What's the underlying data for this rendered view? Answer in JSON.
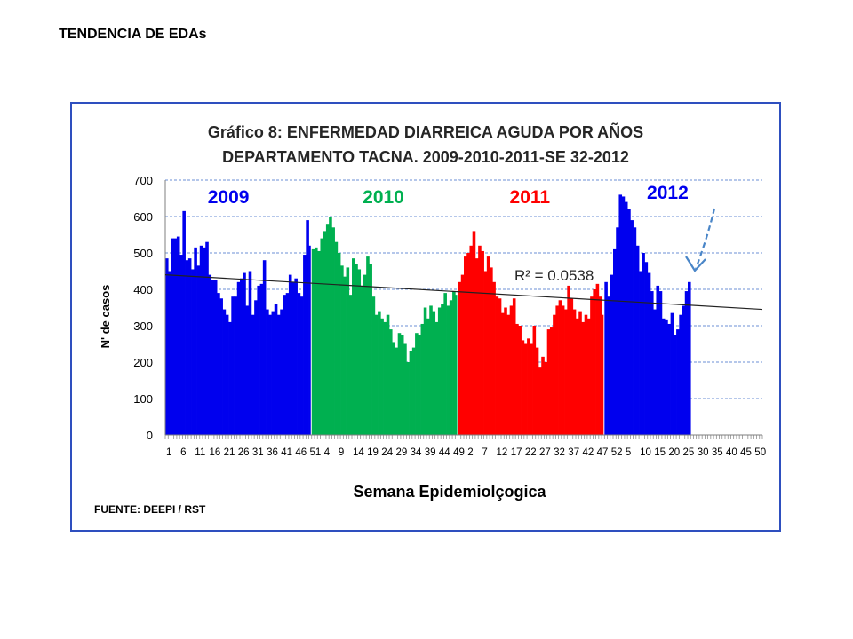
{
  "page": {
    "heading": "TENDENCIA DE EDAs"
  },
  "chart_data": {
    "type": "bar",
    "title_lines": [
      "Gráfico 8: ENFERMEDAD DIARREICA AGUDA POR AÑOS",
      "DEPARTAMENTO TACNA.  2009-2010-2011-SE 32-2012"
    ],
    "ylabel": "N' de casos",
    "xlabel": "Semana Epidemiolçogica",
    "ylim": [
      0,
      700
    ],
    "yticks": [
      0,
      100,
      200,
      300,
      400,
      500,
      600,
      700
    ],
    "grid": true,
    "total_slots": 208,
    "xtick_labels": [
      {
        "slot": 1,
        "label": "1"
      },
      {
        "slot": 6,
        "label": "6"
      },
      {
        "slot": 11,
        "label": "11"
      },
      {
        "slot": 16,
        "label": "16"
      },
      {
        "slot": 21,
        "label": "21"
      },
      {
        "slot": 26,
        "label": "26"
      },
      {
        "slot": 31,
        "label": "31"
      },
      {
        "slot": 36,
        "label": "36"
      },
      {
        "slot": 41,
        "label": "41"
      },
      {
        "slot": 46,
        "label": "46"
      },
      {
        "slot": 51,
        "label": "51"
      },
      {
        "slot": 56,
        "label": "4"
      },
      {
        "slot": 61,
        "label": "9"
      },
      {
        "slot": 66,
        "label": "14"
      },
      {
        "slot": 71,
        "label": "19"
      },
      {
        "slot": 76,
        "label": "24"
      },
      {
        "slot": 81,
        "label": "29"
      },
      {
        "slot": 86,
        "label": "34"
      },
      {
        "slot": 91,
        "label": "39"
      },
      {
        "slot": 96,
        "label": "44"
      },
      {
        "slot": 101,
        "label": "49"
      },
      {
        "slot": 106,
        "label": "2"
      },
      {
        "slot": 111,
        "label": "7"
      },
      {
        "slot": 116,
        "label": "12"
      },
      {
        "slot": 121,
        "label": "17"
      },
      {
        "slot": 126,
        "label": "22"
      },
      {
        "slot": 131,
        "label": "27"
      },
      {
        "slot": 136,
        "label": "32"
      },
      {
        "slot": 141,
        "label": "37"
      },
      {
        "slot": 146,
        "label": "42"
      },
      {
        "slot": 151,
        "label": "47"
      },
      {
        "slot": 156,
        "label": "52"
      },
      {
        "slot": 161,
        "label": "5"
      },
      {
        "slot": 166,
        "label": "10"
      },
      {
        "slot": 171,
        "label": "15"
      },
      {
        "slot": 176,
        "label": "20"
      },
      {
        "slot": 181,
        "label": "25"
      },
      {
        "slot": 186,
        "label": "30"
      },
      {
        "slot": 191,
        "label": "35"
      },
      {
        "slot": 196,
        "label": "40"
      },
      {
        "slot": 201,
        "label": "45"
      },
      {
        "slot": 206,
        "label": "50"
      }
    ],
    "series": [
      {
        "name": "2009",
        "color": "#0000ee",
        "values": [
          485,
          450,
          540,
          540,
          545,
          495,
          615,
          480,
          485,
          455,
          515,
          465,
          520,
          515,
          530,
          440,
          425,
          425,
          390,
          375,
          345,
          330,
          310,
          380,
          380,
          420,
          430,
          445,
          355,
          450,
          330,
          370,
          410,
          415,
          480,
          345,
          330,
          340,
          360,
          330,
          345,
          385,
          390,
          440,
          420,
          430,
          390,
          380,
          495,
          590,
          520
        ]
      },
      {
        "name": "2010",
        "color": "#00b050",
        "values": [
          510,
          515,
          505,
          540,
          560,
          580,
          600,
          570,
          530,
          500,
          465,
          435,
          460,
          385,
          485,
          470,
          455,
          410,
          440,
          490,
          470,
          380,
          330,
          340,
          320,
          310,
          330,
          290,
          255,
          240,
          280,
          275,
          250,
          200,
          230,
          240,
          280,
          275,
          305,
          350,
          320,
          355,
          340,
          310,
          350,
          360,
          390,
          355,
          370,
          395,
          385
        ]
      },
      {
        "name": "2011",
        "color": "#ff0000",
        "values": [
          420,
          440,
          490,
          500,
          520,
          560,
          485,
          520,
          505,
          450,
          490,
          460,
          420,
          380,
          375,
          335,
          350,
          330,
          355,
          375,
          305,
          300,
          260,
          250,
          265,
          250,
          300,
          240,
          185,
          215,
          200,
          290,
          295,
          330,
          355,
          370,
          355,
          345,
          410,
          375,
          345,
          320,
          340,
          310,
          330,
          320,
          380,
          400,
          415,
          380,
          330
        ]
      },
      {
        "name": "2012",
        "color": "#0000ee",
        "values": [
          420,
          380,
          440,
          510,
          570,
          660,
          655,
          640,
          620,
          590,
          570,
          520,
          450,
          500,
          475,
          445,
          395,
          345,
          410,
          395,
          320,
          315,
          305,
          335,
          275,
          290,
          330,
          355,
          395,
          420
        ]
      }
    ],
    "trendline": {
      "start": 440,
      "end": 345
    },
    "annotations": {
      "year_labels": [
        {
          "text": "2009",
          "color": "#0000ee"
        },
        {
          "text": "2010",
          "color": "#00b050"
        },
        {
          "text": "2011",
          "color": "#ff0000"
        },
        {
          "text": "2012",
          "color": "#0000ee"
        }
      ],
      "r_squared": "R² = 0.0538",
      "arrow_color": "#4a86c8"
    },
    "source": "FUENTE: DEEPI / RST",
    "colors": {
      "frame": "#2e4fbf",
      "gridline": "#6b8fd6",
      "trendline": "#222222"
    }
  }
}
